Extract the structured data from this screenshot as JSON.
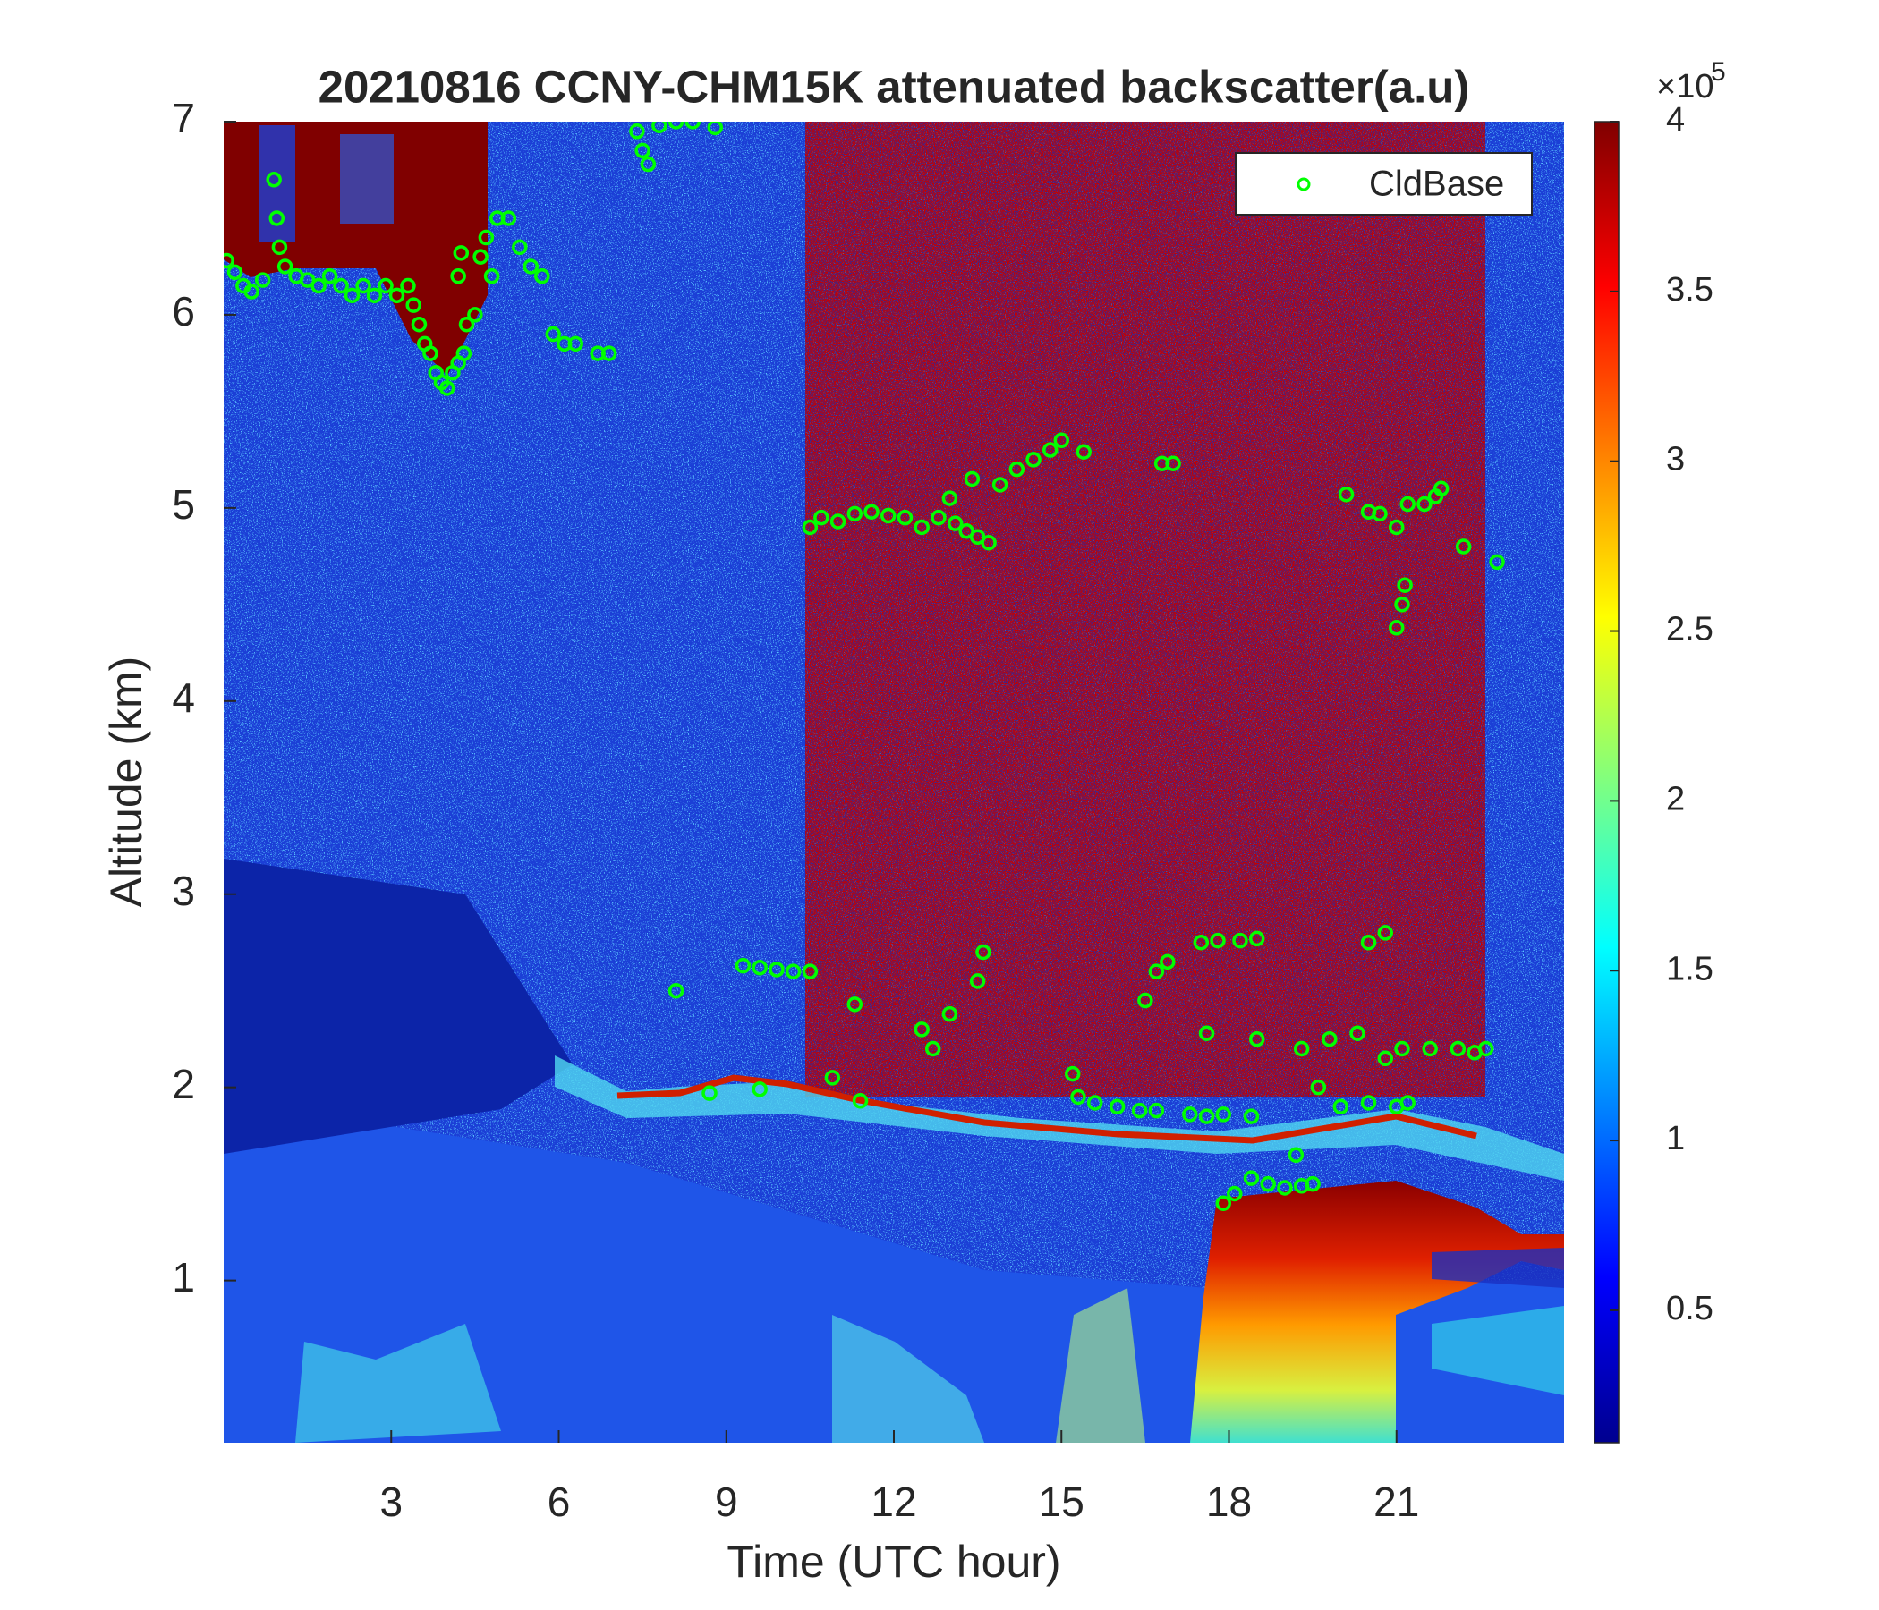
{
  "chart_data": {
    "type": "scatter",
    "title": "20210816 CCNY-CHM15K attenuated backscatter(a.u)",
    "xlabel": "Time (UTC hour)",
    "ylabel": "Altitude (km)",
    "xlim": [
      0,
      24
    ],
    "ylim": [
      0.16,
      7
    ],
    "xticks": [
      3,
      6,
      9,
      12,
      15,
      18,
      21
    ],
    "yticks": [
      1,
      2,
      3,
      4,
      5,
      6,
      7
    ],
    "legend_loc": "northeast",
    "series": [
      {
        "name": "CldBase",
        "color": "#00ff00",
        "x": [
          0.05,
          0.2,
          0.35,
          0.5,
          0.7,
          0.9,
          0.95,
          1.0,
          1.1,
          1.3,
          1.5,
          1.7,
          1.9,
          2.1,
          2.3,
          2.5,
          2.7,
          2.9,
          3.1,
          3.3,
          3.4,
          3.5,
          3.6,
          3.7,
          3.8,
          3.9,
          4.0,
          4.1,
          4.2,
          4.3,
          4.35,
          4.2,
          4.25,
          4.5,
          4.6,
          4.7,
          4.8,
          4.9,
          5.1,
          5.3,
          5.5,
          5.7,
          5.9,
          6.1,
          6.3,
          6.7,
          6.9,
          7.4,
          7.5,
          7.6,
          7.8,
          8.1,
          8.4,
          8.8,
          10.5,
          10.7,
          11.0,
          11.3,
          11.6,
          11.9,
          12.2,
          12.5,
          12.8,
          13.0,
          13.1,
          13.3,
          13.5,
          13.7,
          13.4,
          13.9,
          14.2,
          14.5,
          14.8,
          15.0,
          15.4,
          16.8,
          17.0,
          20.1,
          20.5,
          20.7,
          21.0,
          21.2,
          21.5,
          21.7,
          21.8,
          22.2,
          22.8,
          21.0,
          21.1,
          21.15,
          8.1,
          9.3,
          9.6,
          9.9,
          10.2,
          10.5,
          11.3,
          12.5,
          12.7,
          13.0,
          13.5,
          13.6,
          8.7,
          9.6,
          10.9,
          11.4,
          15.2,
          15.3,
          15.6,
          16.0,
          16.4,
          16.7,
          16.5,
          16.7,
          16.9,
          17.3,
          17.6,
          17.9,
          17.5,
          17.8,
          18.2,
          17.6,
          18.4,
          18.5,
          17.9,
          18.1,
          18.4,
          18.7,
          19.0,
          19.3,
          19.5,
          19.2,
          19.3,
          19.6,
          19.8,
          20.0,
          20.3,
          20.5,
          20.8,
          20.5,
          20.8,
          21.1,
          21.0,
          21.2,
          21.6,
          22.1,
          22.4,
          22.6,
          18.5
        ],
        "y": [
          6.28,
          6.22,
          6.15,
          6.12,
          6.18,
          6.7,
          6.5,
          6.35,
          6.25,
          6.2,
          6.18,
          6.15,
          6.2,
          6.15,
          6.1,
          6.15,
          6.1,
          6.15,
          6.1,
          6.15,
          6.05,
          5.95,
          5.85,
          5.8,
          5.7,
          5.65,
          5.62,
          5.7,
          5.75,
          5.8,
          5.95,
          6.2,
          6.32,
          6.0,
          6.3,
          6.4,
          6.2,
          6.5,
          6.5,
          6.35,
          6.25,
          6.2,
          5.9,
          5.85,
          5.85,
          5.8,
          5.8,
          6.95,
          6.85,
          6.78,
          6.98,
          7.0,
          7.0,
          6.97,
          4.9,
          4.95,
          4.93,
          4.97,
          4.98,
          4.96,
          4.95,
          4.9,
          4.95,
          5.05,
          4.92,
          4.88,
          4.85,
          4.82,
          5.15,
          5.12,
          5.2,
          5.25,
          5.3,
          5.35,
          5.29,
          5.23,
          5.23,
          5.07,
          4.98,
          4.97,
          4.9,
          5.02,
          5.02,
          5.06,
          5.1,
          4.8,
          4.72,
          4.38,
          4.5,
          4.6,
          2.5,
          2.63,
          2.62,
          2.61,
          2.6,
          2.6,
          2.43,
          2.3,
          2.2,
          2.38,
          2.55,
          2.7,
          1.97,
          1.99,
          2.05,
          1.93,
          2.07,
          1.95,
          1.92,
          1.9,
          1.88,
          1.88,
          2.45,
          2.6,
          2.65,
          1.86,
          1.85,
          1.86,
          2.75,
          2.76,
          2.76,
          2.28,
          1.85,
          2.25,
          1.4,
          1.45,
          1.53,
          1.5,
          1.48,
          1.49,
          1.5,
          1.65,
          2.2,
          2.0,
          2.25,
          1.9,
          2.28,
          1.92,
          2.15,
          2.75,
          2.8,
          2.2,
          1.9,
          1.92,
          2.2,
          2.2,
          2.18,
          2.2,
          2.77
        ]
      }
    ],
    "colorbar": {
      "colormap": "jet",
      "lim": [
        0.11,
        4
      ],
      "ticks": [
        0.5,
        1,
        1.5,
        2,
        2.5,
        3,
        3.5,
        4
      ],
      "base": "×10",
      "exponent": "5"
    }
  }
}
